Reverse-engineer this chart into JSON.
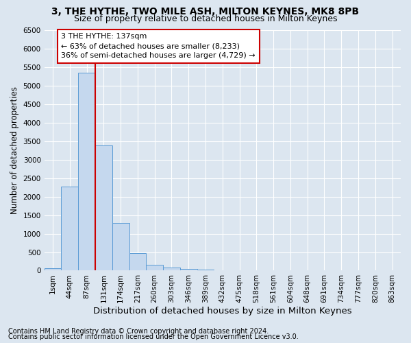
{
  "title1": "3, THE HYTHE, TWO MILE ASH, MILTON KEYNES, MK8 8PB",
  "title2": "Size of property relative to detached houses in Milton Keynes",
  "xlabel": "Distribution of detached houses by size in Milton Keynes",
  "ylabel": "Number of detached properties",
  "footer1": "Contains HM Land Registry data © Crown copyright and database right 2024.",
  "footer2": "Contains public sector information licensed under the Open Government Licence v3.0.",
  "bin_labels": [
    "1sqm",
    "44sqm",
    "87sqm",
    "131sqm",
    "174sqm",
    "217sqm",
    "260sqm",
    "303sqm",
    "346sqm",
    "389sqm",
    "432sqm",
    "475sqm",
    "518sqm",
    "561sqm",
    "604sqm",
    "648sqm",
    "691sqm",
    "734sqm",
    "777sqm",
    "820sqm",
    "863sqm"
  ],
  "bar_values": [
    60,
    2280,
    5350,
    3380,
    1290,
    480,
    160,
    80,
    50,
    30,
    10,
    0,
    0,
    0,
    0,
    0,
    0,
    0,
    0,
    0,
    0
  ],
  "bar_color": "#c5d8ee",
  "bar_edge_color": "#5b9bd5",
  "property_bin_index": 3,
  "vline_color": "#cc0000",
  "annotation_line1": "3 THE HYTHE: 137sqm",
  "annotation_line2": "← 63% of detached houses are smaller (8,233)",
  "annotation_line3": "36% of semi-detached houses are larger (4,729) →",
  "annotation_box_facecolor": "#ffffff",
  "annotation_box_edgecolor": "#cc0000",
  "ylim_max": 6500,
  "yticks": [
    0,
    500,
    1000,
    1500,
    2000,
    2500,
    3000,
    3500,
    4000,
    4500,
    5000,
    5500,
    6000,
    6500
  ],
  "background_color": "#dce6f0",
  "grid_color": "#ffffff",
  "title1_fontsize": 10,
  "title2_fontsize": 9,
  "xlabel_fontsize": 9.5,
  "ylabel_fontsize": 8.5,
  "tick_fontsize": 7.5,
  "annot_fontsize": 8,
  "footer_fontsize": 7
}
